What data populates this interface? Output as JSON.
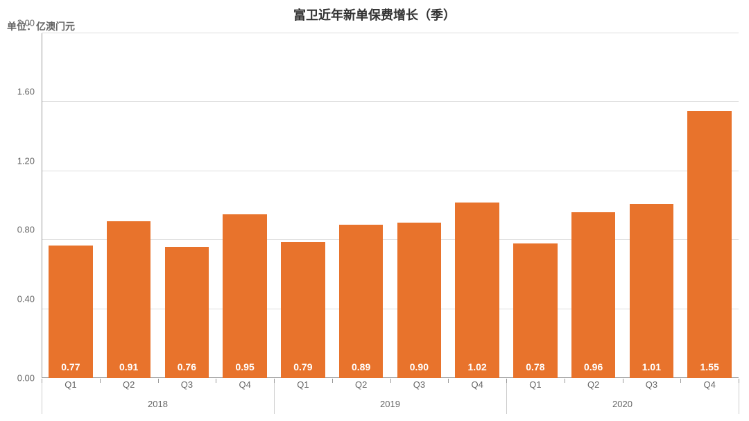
{
  "chart": {
    "type": "bar",
    "title": "富卫近年新单保费增长（季）",
    "unit_label": "单位：亿澳门元",
    "title_fontsize": 18,
    "label_fontsize": 13,
    "bar_label_fontsize": 14,
    "ylim": [
      0.0,
      2.0
    ],
    "ytick_step": 0.4,
    "yticks": [
      "0.00",
      "0.40",
      "0.80",
      "1.20",
      "1.60",
      "2.00"
    ],
    "bar_color": "#e8732c",
    "bar_label_color": "#ffffff",
    "background_color": "#ffffff",
    "grid_color": "#dddddd",
    "axis_color": "#999999",
    "text_color": "#666666",
    "title_color": "#333333",
    "bar_width": 0.76,
    "years": [
      "2018",
      "2019",
      "2020"
    ],
    "quarters": [
      "Q1",
      "Q2",
      "Q3",
      "Q4",
      "Q1",
      "Q2",
      "Q3",
      "Q4",
      "Q1",
      "Q2",
      "Q3",
      "Q4"
    ],
    "values": [
      0.77,
      0.91,
      0.76,
      0.95,
      0.79,
      0.89,
      0.9,
      1.02,
      0.78,
      0.96,
      1.01,
      1.55
    ],
    "value_labels": [
      "0.77",
      "0.91",
      "0.76",
      "0.95",
      "0.79",
      "0.89",
      "0.90",
      "1.02",
      "0.78",
      "0.96",
      "1.01",
      "1.55"
    ]
  }
}
